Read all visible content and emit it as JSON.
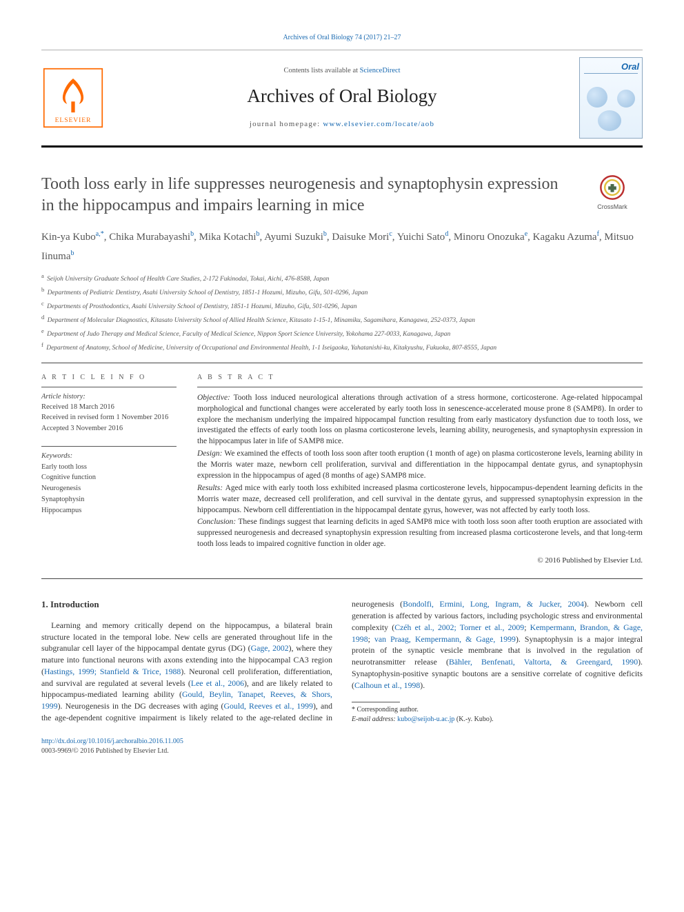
{
  "top_link": {
    "text": "Archives of Oral Biology 74 (2017) 21–27",
    "href": "#"
  },
  "masthead": {
    "sd_prefix": "Contents lists available at ",
    "sd_link": "ScienceDirect",
    "journal_title": "Archives of Oral Biology",
    "homepage_prefix": "journal homepage: ",
    "homepage_link": "www.elsevier.com/locate/aob",
    "elsevier_orange": "#ff6a00",
    "cover_brand": "Oral"
  },
  "crossmark_label": "CrossMark",
  "title": "Tooth loss early in life suppresses neurogenesis and synaptophysin expression in the hippocampus and impairs learning in mice",
  "authors": [
    {
      "name": "Kin-ya Kubo",
      "sup": "a,*"
    },
    {
      "name": "Chika Murabayashi",
      "sup": "b"
    },
    {
      "name": "Mika Kotachi",
      "sup": "b"
    },
    {
      "name": "Ayumi Suzuki",
      "sup": "b"
    },
    {
      "name": "Daisuke Mori",
      "sup": "c"
    },
    {
      "name": "Yuichi Sato",
      "sup": "d"
    },
    {
      "name": "Minoru Onozuka",
      "sup": "e"
    },
    {
      "name": "Kagaku Azuma",
      "sup": "f"
    },
    {
      "name": "Mitsuo Iinuma",
      "sup": "b"
    }
  ],
  "affiliations": [
    {
      "key": "a",
      "text": "Seijoh University Graduate School of Health Care Studies, 2-172 Fukinodai, Tokai, Aichi, 476-8588, Japan"
    },
    {
      "key": "b",
      "text": "Departments of Pediatric Dentistry, Asahi University School of Dentistry, 1851-1 Hozumi, Mizuho, Gifu, 501-0296, Japan"
    },
    {
      "key": "c",
      "text": "Departments of Prosthodontics, Asahi University School of Dentistry, 1851-1 Hozumi, Mizuho, Gifu, 501-0296, Japan"
    },
    {
      "key": "d",
      "text": "Department of Molecular Diagnostics, Kitasato University School of Allied Health Science, Kitasato 1-15-1, Minamiku, Sagamihara, Kanagawa, 252-0373, Japan"
    },
    {
      "key": "e",
      "text": "Department of Judo Therapy and Medical Science, Faculty of Medical Science, Nippon Sport Science University, Yokohama 227-0033, Kanagawa, Japan"
    },
    {
      "key": "f",
      "text": "Department of Anatomy, School of Medicine, University of Occupational and Environmental Health, 1-1 Iseigaoka, Yahatanishi-ku, Kitakyushu, Fukuoka, 807-8555, Japan"
    }
  ],
  "info": {
    "head": "A R T I C L E  I N F O",
    "history_head": "Article history:",
    "history": [
      "Received 18 March 2016",
      "Received in revised form 1 November 2016",
      "Accepted 3 November 2016"
    ],
    "kw_head": "Keywords:",
    "keywords": [
      "Early tooth loss",
      "Cognitive function",
      "Neurogenesis",
      "Synaptophysin",
      "Hippocampus"
    ]
  },
  "abstract": {
    "head": "A B S T R A C T",
    "sections": [
      {
        "label": "Objective:",
        "text": "Tooth loss induced neurological alterations through activation of a stress hormone, corticosterone. Age-related hippocampal morphological and functional changes were accelerated by early tooth loss in senescence-accelerated mouse prone 8 (SAMP8). In order to explore the mechanism underlying the impaired hippocampal function resulting from early masticatory dysfunction due to tooth loss, we investigated the effects of early tooth loss on plasma corticosterone levels, learning ability, neurogenesis, and synaptophysin expression in the hippocampus later in life of SAMP8 mice."
      },
      {
        "label": "Design:",
        "text": "We examined the effects of tooth loss soon after tooth eruption (1 month of age) on plasma corticosterone levels, learning ability in the Morris water maze, newborn cell proliferation, survival and differentiation in the hippocampal dentate gyrus, and synaptophysin expression in the hippocampus of aged (8 months of age) SAMP8 mice."
      },
      {
        "label": "Results:",
        "text": "Aged mice with early tooth loss exhibited increased plasma corticosterone levels, hippocampus-dependent learning deficits in the Morris water maze, decreased cell proliferation, and cell survival in the dentate gyrus, and suppressed synaptophysin expression in the hippocampus. Newborn cell differentiation in the hippocampal dentate gyrus, however, was not affected by early tooth loss."
      },
      {
        "label": "Conclusion:",
        "text": "These findings suggest that learning deficits in aged SAMP8 mice with tooth loss soon after tooth eruption are associated with suppressed neurogenesis and decreased synaptophysin expression resulting from increased plasma corticosterone levels, and that long-term tooth loss leads to impaired cognitive function in older age."
      }
    ],
    "copyright": "© 2016 Published by Elsevier Ltd."
  },
  "intro": {
    "heading": "1. Introduction",
    "para_a_pre": "Learning and memory critically depend on the hippocampus, a bilateral brain structure located in the temporal lobe. New cells are generated throughout life in the subgranular cell layer of the hippocampal dentate gyrus (DG) (",
    "ref1": "Gage, 2002",
    "para_a_mid1": "), where they mature into functional neurons with axons extending into the hippocampal CA3 region (",
    "ref2": "Hastings, 1999; Stanfield & Trice, 1988",
    "para_a_mid2": "). Neuronal cell proliferation, differentiation, and survival are regulated at several levels (",
    "ref3": "Lee et al., 2006",
    "para_a_post": "), and are likely related to ",
    "para_b_pre": "hippocampus-mediated learning ability (",
    "ref4": "Gould, Beylin, Tanapet, Reeves, & Shors, 1999",
    "para_b_mid1": "). Neurogenesis in the DG decreases with aging (",
    "ref5": "Gould, Reeves et al., 1999",
    "para_b_mid2": "), and the age-dependent cognitive impairment is likely related to the age-related decline in neurogenesis (",
    "ref6": "Bondolfi, Ermini, Long, Ingram, & Jucker, 2004",
    "para_b_mid3": "). Newborn cell generation is affected by various factors, including psychologic stress and environmental complexity (",
    "ref7": "Czéh et al., 2002; Torner et al., 2009",
    "ref7b": "Kempermann, Brandon, & Gage, 1998",
    "ref7c": "van Praag, Kempermann, & Gage, 1999",
    "para_b_mid4": "). Synaptophysin is a major integral protein of the synaptic vesicle membrane that is involved in the regulation of neurotransmitter release (",
    "ref8": "Bähler, Benfenati, Valtorta, & Greengard, 1990",
    "para_b_mid5": "). Synaptophysin-positive synaptic boutons are a sensitive correlate of cognitive deficits (",
    "ref9": "Calhoun et al., 1998",
    "para_b_post": ")."
  },
  "footnotes": {
    "corr": "Corresponding author.",
    "email_label": "E-mail address:",
    "email": "kubo@seijoh-u.ac.jp",
    "email_who": "(K.-y. Kubo)."
  },
  "bottom": {
    "doi": "http://dx.doi.org/10.1016/j.archoralbio.2016.11.005",
    "issn_line": "0003-9969/© 2016 Published by Elsevier Ltd."
  },
  "colors": {
    "link": "#1768b0",
    "rule": "#444444",
    "text": "#333333",
    "muted": "#555555"
  }
}
